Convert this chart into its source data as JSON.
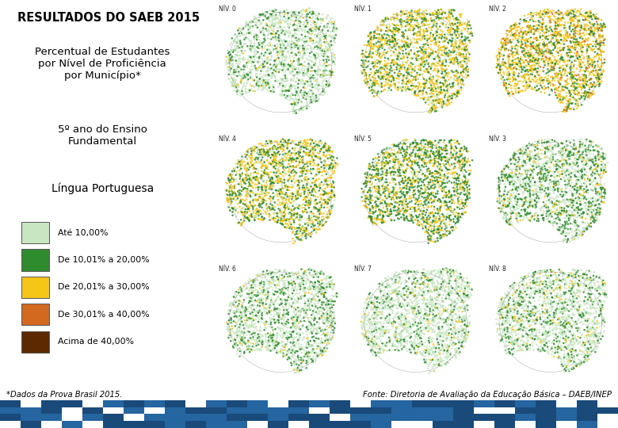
{
  "title_main": "RESULTADOS DO SAEB 2015",
  "subtitle1": "Percentual de Estudantes\npor Nível de Proficiência\npor Município*",
  "subtitle2": "5º ano do Ensino\nFundamental",
  "subtitle3": "Língua Portuguesa",
  "legend_items": [
    {
      "label": "Até 10,00%",
      "color": "#c8e6c0"
    },
    {
      "label": "De 10,01% a 20,00%",
      "color": "#2e8b2e"
    },
    {
      "label": "De 20,01% a 30,00%",
      "color": "#f5c518"
    },
    {
      "label": "De 30,01% a 40,00%",
      "color": "#d2691e"
    },
    {
      "label": "Acima de 40,00%",
      "color": "#5c2a00"
    }
  ],
  "footnote_left": "*Dados da Prova Brasil 2015.",
  "footnote_right": "Fonte: Diretoria de Avaliação da Educação Básica – DAEB/INEP",
  "level_labels": [
    "NÍV. 0",
    "NÍV. 1",
    "NÍV. 2",
    "NÍV. 4",
    "NÍV. 5",
    "NÍV. 3",
    "NÍV. 6",
    "NÍV. 7",
    "NÍV. 8"
  ],
  "bg_color": "#ffffff",
  "footer_bg": "#1a4a7a",
  "map_configs": [
    {
      "dominant": "#c8e6c0",
      "secondary": "#2e8b2e",
      "tertiary": "#f5c518",
      "q_sec": 0.25,
      "q_ter": 0.05
    },
    {
      "dominant": "#f5c518",
      "secondary": "#2e8b2e",
      "tertiary": "#c8e6c0",
      "q_sec": 0.35,
      "q_ter": 0.1
    },
    {
      "dominant": "#f5c518",
      "secondary": "#2e8b2e",
      "tertiary": "#d2691e",
      "q_sec": 0.3,
      "q_ter": 0.08
    },
    {
      "dominant": "#f5c518",
      "secondary": "#2e8b2e",
      "tertiary": "#c8e6c0",
      "q_sec": 0.38,
      "q_ter": 0.12
    },
    {
      "dominant": "#2e8b2e",
      "secondary": "#f5c518",
      "tertiary": "#c8e6c0",
      "q_sec": 0.35,
      "q_ter": 0.1
    },
    {
      "dominant": "#c8e6c0",
      "secondary": "#2e8b2e",
      "tertiary": "#f5c518",
      "q_sec": 0.4,
      "q_ter": 0.1
    },
    {
      "dominant": "#c8e6c0",
      "secondary": "#2e8b2e",
      "tertiary": "#f5c518",
      "q_sec": 0.3,
      "q_ter": 0.05
    },
    {
      "dominant": "#c8e6c0",
      "secondary": "#2e8b2e",
      "tertiary": "#f5c518",
      "q_sec": 0.2,
      "q_ter": 0.05
    },
    {
      "dominant": "#c8e6c0",
      "secondary": "#2e8b2e",
      "tertiary": "#f5c518",
      "q_sec": 0.25,
      "q_ter": 0.07
    }
  ]
}
